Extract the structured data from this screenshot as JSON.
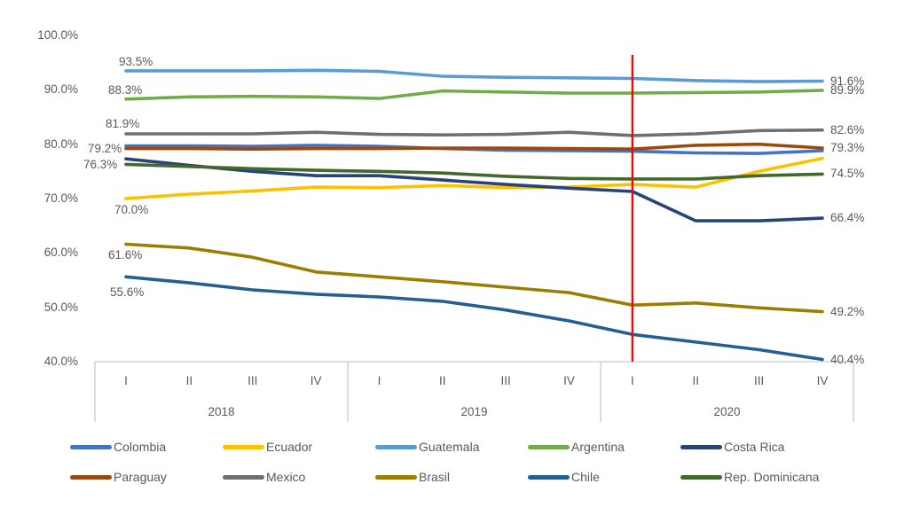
{
  "chart_data": {
    "type": "line",
    "title": "",
    "xlabel": "",
    "ylabel": "",
    "grid": "off",
    "y_axis": {
      "min": 40,
      "max": 100,
      "ticks": [
        {
          "label": "100.0%",
          "value": 100
        },
        {
          "label": "90.0%",
          "value": 90
        },
        {
          "label": "80.0%",
          "value": 80
        },
        {
          "label": "70.0%",
          "value": 70
        },
        {
          "label": "60.0%",
          "value": 60
        },
        {
          "label": "50.0%",
          "value": 50
        },
        {
          "label": "40.0%",
          "value": 40
        }
      ]
    },
    "x_groups": [
      {
        "year": "2018",
        "quarters": [
          "I",
          "II",
          "III",
          "IV"
        ]
      },
      {
        "year": "2019",
        "quarters": [
          "I",
          "II",
          "III",
          "IV"
        ]
      },
      {
        "year": "2020",
        "quarters": [
          "I",
          "II",
          "III",
          "IV"
        ]
      }
    ],
    "series": [
      {
        "name": "Colombia",
        "color": "#4472C4",
        "start_label": null,
        "end_label": null,
        "values": [
          79.7,
          79.7,
          79.6,
          79.8,
          79.6,
          79.2,
          78.9,
          78.8,
          78.7,
          78.4,
          78.3,
          78.8
        ]
      },
      {
        "name": "Ecuador",
        "color": "#FFC000",
        "start_label": "70.0%",
        "end_label": null,
        "values": [
          70.0,
          70.8,
          71.4,
          72.1,
          72.0,
          72.4,
          72.0,
          72.1,
          72.6,
          72.1,
          75.0,
          77.4
        ]
      },
      {
        "name": "Guatemala",
        "color": "#5B9BD5",
        "start_label": "93.5%",
        "end_label": "91.6%",
        "values": [
          93.5,
          93.5,
          93.5,
          93.6,
          93.4,
          92.5,
          92.3,
          92.2,
          92.1,
          91.7,
          91.5,
          91.6
        ]
      },
      {
        "name": "Argentina",
        "color": "#70AD47",
        "start_label": "88.3%",
        "end_label": "89.9%",
        "values": [
          88.3,
          88.7,
          88.8,
          88.7,
          88.4,
          89.8,
          89.6,
          89.4,
          89.4,
          89.5,
          89.6,
          89.9
        ]
      },
      {
        "name": "Costa Rica",
        "color": "#264478",
        "start_label": null,
        "end_label": "66.4%",
        "values": [
          77.3,
          76.1,
          75.0,
          74.2,
          74.2,
          73.4,
          72.6,
          71.9,
          71.3,
          65.9,
          65.9,
          66.4
        ]
      },
      {
        "name": "Paraguay",
        "color": "#9E480E",
        "start_label": "79.2%",
        "end_label": "79.3%",
        "values": [
          79.2,
          79.2,
          79.1,
          79.2,
          79.2,
          79.3,
          79.3,
          79.2,
          79.1,
          79.8,
          80.0,
          79.3
        ]
      },
      {
        "name": "Mexico",
        "color": "#6F6F6F",
        "start_label": "81.9%",
        "end_label": "82.6%",
        "values": [
          81.9,
          81.9,
          81.9,
          82.2,
          81.8,
          81.7,
          81.8,
          82.2,
          81.6,
          81.9,
          82.5,
          82.6
        ]
      },
      {
        "name": "Brasil",
        "color": "#9D7D00",
        "start_label": "61.6%",
        "end_label": "49.2%",
        "values": [
          61.6,
          60.9,
          59.2,
          56.5,
          55.6,
          54.7,
          53.7,
          52.7,
          50.4,
          50.8,
          49.9,
          49.2
        ]
      },
      {
        "name": "Chile",
        "color": "#255E91",
        "start_label": "55.6%",
        "end_label": "40.4%",
        "values": [
          55.6,
          54.5,
          53.2,
          52.4,
          51.9,
          51.1,
          49.5,
          47.5,
          45.0,
          43.6,
          42.2,
          40.4
        ]
      },
      {
        "name": "Rep. Dominicana",
        "color": "#43682B",
        "start_label": "76.3%",
        "end_label": "74.5%",
        "values": [
          76.3,
          75.9,
          75.5,
          75.2,
          75.0,
          74.7,
          74.1,
          73.7,
          73.6,
          73.6,
          74.2,
          74.5
        ]
      }
    ],
    "annotation_line": {
      "x_group": "2020",
      "quarter": "I",
      "color": "#FF0000"
    },
    "legend": {
      "position": "bottom",
      "order": [
        "Colombia",
        "Ecuador",
        "Guatemala",
        "Argentina",
        "Costa Rica",
        "Paraguay",
        "Mexico",
        "Brasil",
        "Chile",
        "Rep. Dominicana"
      ]
    }
  }
}
